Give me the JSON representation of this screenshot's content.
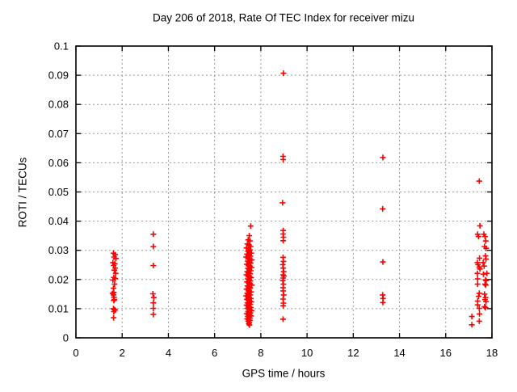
{
  "chart_data": {
    "type": "scatter",
    "title": "Day 206 of 2018, Rate Of TEC Index for receiver mizu",
    "xlabel": "GPS time / hours",
    "ylabel": "ROTI / TECUs",
    "xlim": [
      0,
      18
    ],
    "ylim": [
      0,
      0.1
    ],
    "grid": true,
    "legend": "none",
    "marker": "plus",
    "marker_color": "#ff0000",
    "frame_color": "#000000",
    "grid_color": "#999999",
    "xticks": [
      [
        0,
        "0"
      ],
      [
        2,
        "2"
      ],
      [
        4,
        "4"
      ],
      [
        6,
        "6"
      ],
      [
        8,
        "8"
      ],
      [
        10,
        "10"
      ],
      [
        12,
        "12"
      ],
      [
        14,
        "14"
      ],
      [
        16,
        "16"
      ],
      [
        18,
        "18"
      ]
    ],
    "yticks": [
      [
        0,
        "0"
      ],
      [
        0.01,
        "0.01"
      ],
      [
        0.02,
        "0.02"
      ],
      [
        0.03,
        "0.03"
      ],
      [
        0.04,
        "0.04"
      ],
      [
        0.05,
        "0.05"
      ],
      [
        0.06,
        "0.06"
      ],
      [
        0.07,
        "0.07"
      ],
      [
        0.08,
        "0.08"
      ],
      [
        0.09,
        "0.09"
      ],
      [
        0.1,
        "0.1"
      ]
    ],
    "series": [
      {
        "name": "ROTI",
        "points": [
          [
            1.62,
            0.029
          ],
          [
            1.7,
            0.0285
          ],
          [
            1.65,
            0.0277
          ],
          [
            1.73,
            0.0272
          ],
          [
            1.6,
            0.0258
          ],
          [
            1.68,
            0.0254
          ],
          [
            1.63,
            0.0248
          ],
          [
            1.7,
            0.0239
          ],
          [
            1.66,
            0.0232
          ],
          [
            1.72,
            0.0221
          ],
          [
            1.64,
            0.0207
          ],
          [
            1.7,
            0.0203
          ],
          [
            1.6,
            0.0198
          ],
          [
            1.67,
            0.0184
          ],
          [
            1.62,
            0.017
          ],
          [
            1.64,
            0.0156
          ],
          [
            1.58,
            0.0152
          ],
          [
            1.63,
            0.0147
          ],
          [
            1.65,
            0.0139
          ],
          [
            1.66,
            0.0131
          ],
          [
            1.64,
            0.0128
          ],
          [
            1.62,
            0.01
          ],
          [
            1.66,
            0.0097
          ],
          [
            1.7,
            0.0095
          ],
          [
            1.64,
            0.009
          ],
          [
            1.63,
            0.0069
          ],
          [
            3.35,
            0.0355
          ],
          [
            3.35,
            0.0313
          ],
          [
            3.35,
            0.0248
          ],
          [
            3.33,
            0.0151
          ],
          [
            3.37,
            0.0138
          ],
          [
            3.35,
            0.012
          ],
          [
            3.35,
            0.0101
          ],
          [
            3.35,
            0.008
          ],
          [
            7.56,
            0.0383
          ],
          [
            7.5,
            0.035
          ],
          [
            7.45,
            0.0336
          ],
          [
            7.53,
            0.0332
          ],
          [
            7.42,
            0.0322
          ],
          [
            7.49,
            0.0318
          ],
          [
            7.56,
            0.0313
          ],
          [
            7.38,
            0.0308
          ],
          [
            7.47,
            0.0305
          ],
          [
            7.54,
            0.0301
          ],
          [
            7.44,
            0.0297
          ],
          [
            7.51,
            0.0293
          ],
          [
            7.59,
            0.029
          ],
          [
            7.4,
            0.0287
          ],
          [
            7.48,
            0.0283
          ],
          [
            7.55,
            0.028
          ],
          [
            7.36,
            0.0277
          ],
          [
            7.45,
            0.0273
          ],
          [
            7.52,
            0.027
          ],
          [
            7.61,
            0.0267
          ],
          [
            7.43,
            0.0263
          ],
          [
            7.49,
            0.026
          ],
          [
            7.56,
            0.0256
          ],
          [
            7.39,
            0.0252
          ],
          [
            7.46,
            0.0249
          ],
          [
            7.53,
            0.0245
          ],
          [
            7.6,
            0.0241
          ],
          [
            7.44,
            0.0238
          ],
          [
            7.5,
            0.0234
          ],
          [
            7.57,
            0.023
          ],
          [
            7.41,
            0.0227
          ],
          [
            7.48,
            0.0223
          ],
          [
            7.54,
            0.022
          ],
          [
            7.37,
            0.0216
          ],
          [
            7.45,
            0.0213
          ],
          [
            7.52,
            0.0209
          ],
          [
            7.58,
            0.0206
          ],
          [
            7.43,
            0.0202
          ],
          [
            7.49,
            0.0199
          ],
          [
            7.55,
            0.0195
          ],
          [
            7.4,
            0.0192
          ],
          [
            7.47,
            0.0188
          ],
          [
            7.53,
            0.0185
          ],
          [
            7.61,
            0.0181
          ],
          [
            7.42,
            0.0178
          ],
          [
            7.48,
            0.0174
          ],
          [
            7.54,
            0.0171
          ],
          [
            7.38,
            0.0167
          ],
          [
            7.46,
            0.0164
          ],
          [
            7.51,
            0.016
          ],
          [
            7.58,
            0.0157
          ],
          [
            7.41,
            0.0153
          ],
          [
            7.48,
            0.015
          ],
          [
            7.54,
            0.0147
          ],
          [
            7.36,
            0.0144
          ],
          [
            7.44,
            0.0141
          ],
          [
            7.5,
            0.0138
          ],
          [
            7.57,
            0.0135
          ],
          [
            7.4,
            0.0132
          ],
          [
            7.46,
            0.0129
          ],
          [
            7.52,
            0.0126
          ],
          [
            7.59,
            0.0123
          ],
          [
            7.42,
            0.012
          ],
          [
            7.49,
            0.0117
          ],
          [
            7.55,
            0.0115
          ],
          [
            7.38,
            0.0112
          ],
          [
            7.45,
            0.0109
          ],
          [
            7.51,
            0.0106
          ],
          [
            7.57,
            0.0104
          ],
          [
            7.41,
            0.0101
          ],
          [
            7.48,
            0.0098
          ],
          [
            7.53,
            0.0096
          ],
          [
            7.6,
            0.0093
          ],
          [
            7.44,
            0.009
          ],
          [
            7.5,
            0.0088
          ],
          [
            7.55,
            0.0085
          ],
          [
            7.39,
            0.0083
          ],
          [
            7.46,
            0.008
          ],
          [
            7.52,
            0.0078
          ],
          [
            7.58,
            0.0075
          ],
          [
            7.43,
            0.0073
          ],
          [
            7.48,
            0.007
          ],
          [
            7.54,
            0.0068
          ],
          [
            7.41,
            0.0065
          ],
          [
            7.47,
            0.0062
          ],
          [
            7.53,
            0.006
          ],
          [
            7.45,
            0.0057
          ],
          [
            7.5,
            0.0053
          ],
          [
            7.48,
            0.0048
          ],
          [
            7.51,
            0.0044
          ],
          [
            8.98,
            0.0907
          ],
          [
            8.96,
            0.0622
          ],
          [
            8.97,
            0.0611
          ],
          [
            8.94,
            0.0463
          ],
          [
            8.97,
            0.0368
          ],
          [
            8.96,
            0.0356
          ],
          [
            8.98,
            0.0345
          ],
          [
            8.97,
            0.0333
          ],
          [
            8.96,
            0.0276
          ],
          [
            8.98,
            0.0262
          ],
          [
            8.95,
            0.0251
          ],
          [
            8.97,
            0.0239
          ],
          [
            8.99,
            0.0227
          ],
          [
            8.96,
            0.0216
          ],
          [
            9.0,
            0.0212
          ],
          [
            8.97,
            0.0205
          ],
          [
            8.95,
            0.0196
          ],
          [
            8.98,
            0.0184
          ],
          [
            8.96,
            0.0172
          ],
          [
            8.97,
            0.0161
          ],
          [
            8.99,
            0.0147
          ],
          [
            8.96,
            0.0133
          ],
          [
            8.98,
            0.0119
          ],
          [
            8.97,
            0.011
          ],
          [
            8.96,
            0.0064
          ],
          [
            13.28,
            0.0618
          ],
          [
            13.27,
            0.0442
          ],
          [
            13.28,
            0.026
          ],
          [
            13.27,
            0.0147
          ],
          [
            13.29,
            0.0135
          ],
          [
            13.28,
            0.0121
          ],
          [
            17.45,
            0.0537
          ],
          [
            17.48,
            0.0384
          ],
          [
            17.38,
            0.0355
          ],
          [
            17.65,
            0.0355
          ],
          [
            17.42,
            0.0347
          ],
          [
            17.7,
            0.0347
          ],
          [
            17.73,
            0.0332
          ],
          [
            17.68,
            0.0313
          ],
          [
            17.75,
            0.0307
          ],
          [
            17.72,
            0.0281
          ],
          [
            17.46,
            0.0273
          ],
          [
            17.74,
            0.027
          ],
          [
            17.37,
            0.0258
          ],
          [
            17.62,
            0.0258
          ],
          [
            17.4,
            0.0251
          ],
          [
            17.66,
            0.0246
          ],
          [
            17.45,
            0.0242
          ],
          [
            17.48,
            0.0236
          ],
          [
            17.37,
            0.0221
          ],
          [
            17.78,
            0.0221
          ],
          [
            17.63,
            0.0218
          ],
          [
            17.38,
            0.0202
          ],
          [
            17.72,
            0.0199
          ],
          [
            17.75,
            0.0196
          ],
          [
            17.38,
            0.0184
          ],
          [
            17.7,
            0.0184
          ],
          [
            17.73,
            0.0181
          ],
          [
            17.45,
            0.0153
          ],
          [
            17.68,
            0.015
          ],
          [
            17.42,
            0.0142
          ],
          [
            17.72,
            0.0138
          ],
          [
            17.7,
            0.0131
          ],
          [
            17.38,
            0.0126
          ],
          [
            17.74,
            0.0124
          ],
          [
            17.38,
            0.0113
          ],
          [
            17.68,
            0.0107
          ],
          [
            17.72,
            0.0103
          ],
          [
            17.45,
            0.0101
          ],
          [
            17.46,
            0.0082
          ],
          [
            17.13,
            0.0073
          ],
          [
            17.45,
            0.0057
          ],
          [
            17.13,
            0.0045
          ]
        ]
      }
    ]
  }
}
